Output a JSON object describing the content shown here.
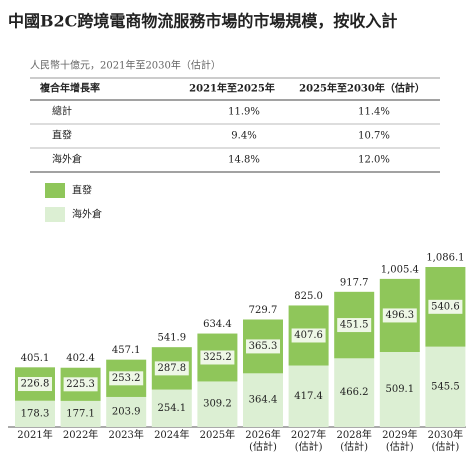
{
  "title": "中國B2C跨境電商物流服務市場的市場規模，按收入計",
  "subtitle": "人民幣十億元，2021年至2030年（估計）",
  "table": {
    "header": [
      "複合年增長率",
      "2021年至2025年",
      "2025年至2030年（估計）"
    ],
    "rows": [
      [
        "總計",
        "11.9%",
        "11.4%"
      ],
      [
        "直發",
        "9.4%",
        "10.7%"
      ],
      [
        "海外倉",
        "14.8%",
        "12.0%"
      ]
    ]
  },
  "chart_data": {
    "type": "stacked_bar",
    "categories": [
      "2021年",
      "2022年",
      "2023年",
      "2024年",
      "2025年",
      "2026年\n(估計)",
      "2027年\n(估計)",
      "2028年\n(估計)",
      "2029年\n(估計)",
      "2030年\n(估計)"
    ],
    "series": [
      {
        "name": "海外倉",
        "color": "#dcefd3",
        "values": [
          178.3,
          177.1,
          203.9,
          254.1,
          309.2,
          364.4,
          417.4,
          466.2,
          509.1,
          545.5
        ]
      },
      {
        "name": "直發",
        "color": "#8fc65a",
        "values": [
          226.8,
          225.3,
          253.2,
          287.8,
          325.2,
          365.3,
          407.6,
          451.5,
          496.3,
          540.6
        ]
      }
    ],
    "totals": [
      405.1,
      402.4,
      457.1,
      541.9,
      634.4,
      729.7,
      825.0,
      917.7,
      1005.4,
      1086.1
    ],
    "total_labels": [
      "405.1",
      "402.4",
      "457.1",
      "541.9",
      "634.4",
      "729.7",
      "825.0",
      "917.7",
      "1,005.4",
      "1,086.1"
    ]
  }
}
